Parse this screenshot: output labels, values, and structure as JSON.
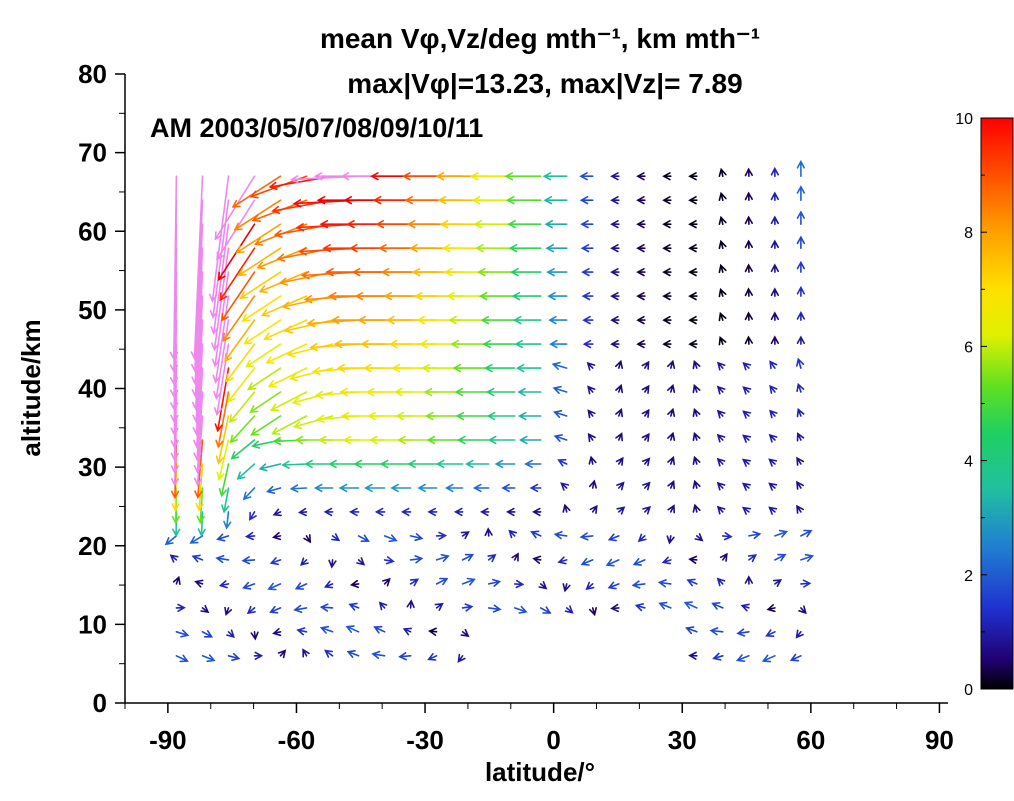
{
  "chart_data": {
    "type": "vector_field",
    "title_line1": "mean Vφ,Vz/deg mth⁻¹, km mth⁻¹",
    "title_line2": "max|Vφ|=13.23, max|Vz|= 7.89",
    "annotation": "AM  2003/05/07/08/09/10/11",
    "xlabel": "latitude/°",
    "ylabel": "altitude/km",
    "xlim": [
      -100,
      92
    ],
    "ylim": [
      0,
      80
    ],
    "xticks": [
      -90,
      -60,
      -30,
      0,
      30,
      60,
      90
    ],
    "yticks": [
      0,
      10,
      20,
      30,
      40,
      50,
      60,
      70,
      80
    ],
    "colorbar": {
      "min": 0,
      "max": 10,
      "ticks": [
        0,
        2,
        4,
        6,
        8,
        10
      ],
      "colormap": "rainbow (black-blue-cyan-green-yellow-orange-red), pink for values above max"
    },
    "grid": {
      "lat_start": -88,
      "lat_step": 6.07,
      "lat_count": 25,
      "alt_start": 6,
      "alt_step": 3.05,
      "alt_count": 21
    },
    "field_description": "Strong westward (negative Vφ) flow from equator to pole above 40 km peaking near 60-65 km at 30°S-60°S; downward motion over south pole; weak mixed flow below 25 km; upward motion at northern high latitudes above 50 km.",
    "max_abs_vphi": 13.23,
    "max_abs_vz": 7.89
  }
}
